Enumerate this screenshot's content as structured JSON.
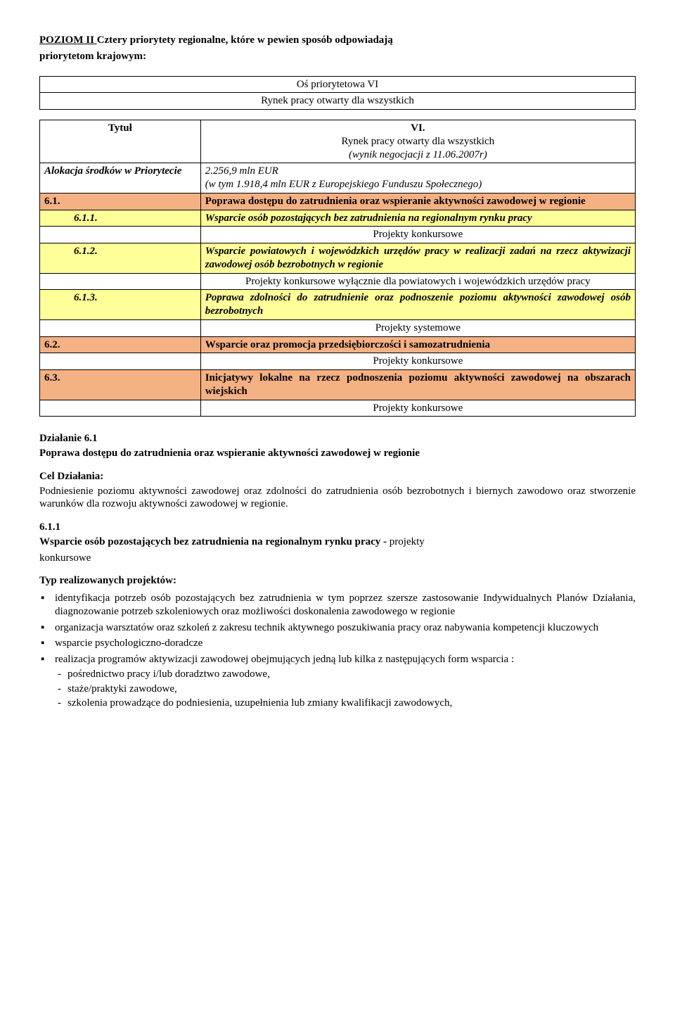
{
  "intro": {
    "line1_underlined": "POZIOM II ",
    "line1_rest": "Cztery priorytety regionalne, które w pewien sposób odpowiadają",
    "line2": "priorytetom krajowym:"
  },
  "axis": {
    "row1": "Oś priorytetowa VI",
    "row2": "Rynek pracy otwarty dla wszystkich"
  },
  "table": {
    "colors": {
      "white": "#ffffff",
      "yellow": "#ffff99",
      "salmon": "#f4b183"
    },
    "rows": [
      {
        "left": "Tytuł",
        "right_lines": [
          "VI.",
          "Rynek pracy otwarty dla wszystkich",
          "(wynik negocjacji z 11.06.2007r)"
        ],
        "left_bold": true,
        "left_center": true,
        "right_center": true,
        "italic_lines": [
          2
        ],
        "bg": "white"
      },
      {
        "left": "Alokacja środków w Priorytecie",
        "right_lines": [
          "2.256,9 mln EUR",
          "(w tym 1.918,4 mln EUR z Europejskiego Funduszu Społecznego)"
        ],
        "left_bold": true,
        "italic_all": true,
        "bg": "white"
      },
      {
        "left": "6.1.",
        "right_lines": [
          "Poprawa dostępu do zatrudnienia oraz wspieranie aktywności zawodowej w regionie"
        ],
        "left_bold": true,
        "right_bold": true,
        "bg": "salmon"
      },
      {
        "left": "6.1.1.",
        "right_lines": [
          "Wsparcie osób pozostających bez zatrudnienia na regionalnym rynku pracy"
        ],
        "left_indent": true,
        "italic_all": true,
        "left_bold": true,
        "right_bold": true,
        "bg": "yellow"
      },
      {
        "left": "",
        "right_lines": [
          "Projekty konkursowe"
        ],
        "right_center": true,
        "bg": "white"
      },
      {
        "left": "6.1.2.",
        "right_lines": [
          "Wsparcie powiatowych i wojewódzkich urzędów pracy w realizacji zadań na rzecz aktywizacji zawodowej osób bezrobotnych w regionie"
        ],
        "left_indent": true,
        "italic_all": true,
        "left_bold": true,
        "right_bold": true,
        "bg": "yellow"
      },
      {
        "left": "",
        "right_lines": [
          "Projekty konkursowe wyłącznie dla powiatowych i wojewódzkich urzędów pracy"
        ],
        "right_center": true,
        "bg": "white"
      },
      {
        "left": "6.1.3.",
        "right_lines": [
          "Poprawa zdolności do zatrudnienie oraz podnoszenie poziomu aktywności zawodowej osób bezrobotnych"
        ],
        "left_indent": true,
        "italic_all": true,
        "left_bold": true,
        "right_bold": true,
        "bg": "yellow"
      },
      {
        "left": "",
        "right_lines": [
          "Projekty systemowe"
        ],
        "right_center": true,
        "bg": "white"
      },
      {
        "left": "6.2.",
        "right_lines": [
          "Wsparcie oraz promocja przedsiębiorczości i samozatrudnienia"
        ],
        "left_bold": true,
        "right_bold": true,
        "bg": "salmon"
      },
      {
        "left": "",
        "right_lines": [
          "Projekty konkursowe"
        ],
        "right_center": true,
        "bg": "white"
      },
      {
        "left": "6.3.",
        "right_lines": [
          "Inicjatywy lokalne na rzecz podnoszenia poziomu aktywności zawodowej na obszarach wiejskich"
        ],
        "left_bold": true,
        "right_bold": true,
        "bg": "salmon"
      },
      {
        "left": "",
        "right_lines": [
          "Projekty konkursowe"
        ],
        "right_center": true,
        "bg": "white"
      }
    ]
  },
  "dzialanie": {
    "heading": "Działanie 6.1",
    "subheading": "Poprawa dostępu do zatrudnienia oraz wspieranie aktywności zawodowej w regionie"
  },
  "cel": {
    "heading": "Cel Działania:",
    "text": "Podniesienie poziomu aktywności zawodowej oraz zdolności do zatrudnienia osób bezrobotnych i biernych zawodowo oraz stworzenie warunków dla rozwoju aktywności zawodowej w regionie."
  },
  "s611": {
    "heading": "6.1.1",
    "line1_bold": "Wsparcie osób pozostających bez zatrudnienia na regionalnym rynku pracy - ",
    "line1_rest": "projekty",
    "line2": "konkursowe"
  },
  "typ_heading": "Typ realizowanych projektów:",
  "bullets": {
    "items": [
      "identyfikacja potrzeb osób pozostających bez zatrudnienia w tym poprzez szersze zastosowanie Indywidualnych Planów Działania, diagnozowanie potrzeb szkoleniowych oraz możliwości doskonalenia zawodowego w regionie",
      "organizacja warsztatów oraz szkoleń z zakresu technik aktywnego poszukiwania pracy oraz nabywania kompetencji kluczowych",
      "wsparcie psychologiczno-doradcze",
      "realizacja programów aktywizacji zawodowej obejmujących jedną lub kilka z następujących form wsparcia :"
    ],
    "sub": [
      "pośrednictwo pracy i/lub doradztwo zawodowe,",
      "staże/praktyki zawodowe,",
      "szkolenia prowadzące do podniesienia, uzupełnienia lub zmiany kwalifikacji zawodowych,"
    ]
  }
}
